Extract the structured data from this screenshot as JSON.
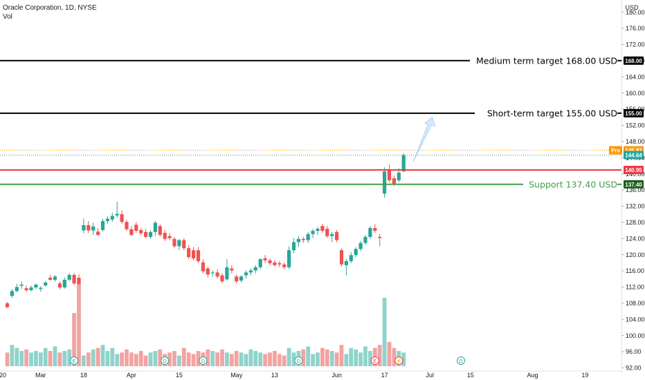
{
  "header": {
    "title": "Oracle Corporation, 1D, NYSE",
    "volume_label": "Vol"
  },
  "chart_data": {
    "type": "candlestick",
    "currency": "USD",
    "ylim": [
      89,
      183
    ],
    "y_ticks": [
      180,
      176,
      172,
      168,
      164,
      160,
      156,
      152,
      148,
      144,
      140,
      136,
      132,
      128,
      124,
      120,
      116,
      112,
      108,
      104,
      100,
      96,
      92
    ],
    "x_ticks": [
      {
        "label": "20",
        "idx": -1
      },
      {
        "label": "Mar",
        "idx": 7
      },
      {
        "label": "18",
        "idx": 16
      },
      {
        "label": "Apr",
        "idx": 26
      },
      {
        "label": "15",
        "idx": 36
      },
      {
        "label": "May",
        "idx": 48
      },
      {
        "label": "13",
        "idx": 56
      },
      {
        "label": "Jun",
        "idx": 69
      },
      {
        "label": "17",
        "idx": 79
      },
      {
        "label": "Jul",
        "idx": 88.5
      },
      {
        "label": "15",
        "idx": 97
      },
      {
        "label": "Aug",
        "idx": 110
      },
      {
        "label": "19",
        "idx": 121
      }
    ],
    "candles": [
      {
        "o": 108,
        "h": 108.3,
        "l": 106.8,
        "c": 107
      },
      {
        "o": 109.8,
        "h": 111.5,
        "l": 109.3,
        "c": 111
      },
      {
        "o": 111,
        "h": 112.8,
        "l": 110.7,
        "c": 112
      },
      {
        "o": 112.3,
        "h": 113.4,
        "l": 111.5,
        "c": 112.6
      },
      {
        "o": 111.7,
        "h": 112.4,
        "l": 110.8,
        "c": 111.2
      },
      {
        "o": 111.2,
        "h": 112.4,
        "l": 110.9,
        "c": 111.9
      },
      {
        "o": 111.9,
        "h": 112.9,
        "l": 111.5,
        "c": 112.6
      },
      {
        "o": 111.5,
        "h": 112.2,
        "l": 110.8,
        "c": 111.8
      },
      {
        "o": 112.4,
        "h": 113.5,
        "l": 112.1,
        "c": 113.1
      },
      {
        "o": 114.3,
        "h": 115,
        "l": 113.6,
        "c": 113.8
      },
      {
        "o": 113.8,
        "h": 114.9,
        "l": 113.3,
        "c": 114.6
      },
      {
        "o": 112.9,
        "h": 113.4,
        "l": 111.4,
        "c": 111.9
      },
      {
        "o": 111.9,
        "h": 114.4,
        "l": 111.6,
        "c": 113.8
      },
      {
        "o": 113.8,
        "h": 115.4,
        "l": 113.4,
        "c": 115
      },
      {
        "o": 115,
        "h": 115.5,
        "l": 112.5,
        "c": 112.9
      },
      {
        "o": 114.3,
        "h": 115.1,
        "l": 112.4,
        "c": 112.8
      },
      {
        "o": 126,
        "h": 129,
        "l": 125.3,
        "c": 127.3
      },
      {
        "o": 127.3,
        "h": 128.3,
        "l": 125.4,
        "c": 126
      },
      {
        "o": 126,
        "h": 127.9,
        "l": 124.9,
        "c": 127
      },
      {
        "o": 125.7,
        "h": 126.6,
        "l": 124.6,
        "c": 124.9
      },
      {
        "o": 126.1,
        "h": 128.9,
        "l": 125.7,
        "c": 128.3
      },
      {
        "o": 128.3,
        "h": 129.5,
        "l": 127.7,
        "c": 128.9
      },
      {
        "o": 128.7,
        "h": 130.4,
        "l": 128.1,
        "c": 129.6
      },
      {
        "o": 129.7,
        "h": 133.1,
        "l": 129.1,
        "c": 130.1
      },
      {
        "o": 130,
        "h": 130.9,
        "l": 127.6,
        "c": 128.1
      },
      {
        "o": 128.1,
        "h": 128.6,
        "l": 125.9,
        "c": 126.3
      },
      {
        "o": 126.3,
        "h": 127.1,
        "l": 124.6,
        "c": 124.9
      },
      {
        "o": 127.4,
        "h": 128.1,
        "l": 125.4,
        "c": 125.9
      },
      {
        "o": 126.1,
        "h": 126.6,
        "l": 124.9,
        "c": 125.3
      },
      {
        "o": 125.6,
        "h": 126.4,
        "l": 124.1,
        "c": 124.4
      },
      {
        "o": 124.4,
        "h": 126.1,
        "l": 123.9,
        "c": 125.6
      },
      {
        "o": 125.6,
        "h": 128.4,
        "l": 124.6,
        "c": 127.9
      },
      {
        "o": 127.1,
        "h": 127.6,
        "l": 124.4,
        "c": 124.9
      },
      {
        "o": 125.4,
        "h": 126.1,
        "l": 123.4,
        "c": 123.9
      },
      {
        "o": 124.6,
        "h": 125.4,
        "l": 123.6,
        "c": 124.1
      },
      {
        "o": 123.9,
        "h": 124.4,
        "l": 121.6,
        "c": 122.1
      },
      {
        "o": 122.1,
        "h": 123.9,
        "l": 121.1,
        "c": 123.6
      },
      {
        "o": 123.6,
        "h": 124.1,
        "l": 121.1,
        "c": 121.6
      },
      {
        "o": 121.6,
        "h": 122.4,
        "l": 118.9,
        "c": 119.4
      },
      {
        "o": 121.1,
        "h": 121.9,
        "l": 118.6,
        "c": 119.1
      },
      {
        "o": 121.1,
        "h": 121.9,
        "l": 117.9,
        "c": 118.4
      },
      {
        "o": 118.1,
        "h": 118.9,
        "l": 115.4,
        "c": 115.9
      },
      {
        "o": 116.6,
        "h": 117.1,
        "l": 114.4,
        "c": 115.1
      },
      {
        "o": 115.4,
        "h": 116.1,
        "l": 114.6,
        "c": 115.6
      },
      {
        "o": 115.6,
        "h": 116.4,
        "l": 114.1,
        "c": 114.6
      },
      {
        "o": 114.9,
        "h": 115.4,
        "l": 112.9,
        "c": 113.4
      },
      {
        "o": 113.9,
        "h": 118.9,
        "l": 113.6,
        "c": 116.9
      },
      {
        "o": 116.6,
        "h": 117.4,
        "l": 115.4,
        "c": 116.1
      },
      {
        "o": 114.6,
        "h": 115.1,
        "l": 112.9,
        "c": 113.4
      },
      {
        "o": 113.6,
        "h": 114.9,
        "l": 113.1,
        "c": 114.6
      },
      {
        "o": 114.9,
        "h": 116.1,
        "l": 114.1,
        "c": 115.6
      },
      {
        "o": 115.6,
        "h": 116.6,
        "l": 114.9,
        "c": 116.1
      },
      {
        "o": 116.1,
        "h": 117.4,
        "l": 115.4,
        "c": 116.9
      },
      {
        "o": 116.9,
        "h": 119.1,
        "l": 116.4,
        "c": 118.9
      },
      {
        "o": 119.1,
        "h": 119.9,
        "l": 117.9,
        "c": 118.6
      },
      {
        "o": 118.6,
        "h": 119.1,
        "l": 117.4,
        "c": 117.9
      },
      {
        "o": 118.1,
        "h": 118.6,
        "l": 117.1,
        "c": 117.4
      },
      {
        "o": 117.9,
        "h": 118.4,
        "l": 116.9,
        "c": 117.6
      },
      {
        "o": 117.6,
        "h": 118.1,
        "l": 116.4,
        "c": 116.9
      },
      {
        "o": 116.9,
        "h": 122.1,
        "l": 116.4,
        "c": 121.1
      },
      {
        "o": 121.1,
        "h": 124.1,
        "l": 120.4,
        "c": 123.1
      },
      {
        "o": 123.1,
        "h": 124.6,
        "l": 121.9,
        "c": 123.9
      },
      {
        "o": 123.9,
        "h": 124.4,
        "l": 122.9,
        "c": 123.6
      },
      {
        "o": 123.6,
        "h": 125.6,
        "l": 122.9,
        "c": 125.1
      },
      {
        "o": 125.1,
        "h": 126.4,
        "l": 124.1,
        "c": 125.9
      },
      {
        "o": 125.9,
        "h": 126.9,
        "l": 124.9,
        "c": 126.4
      },
      {
        "o": 127.1,
        "h": 127.6,
        "l": 125.4,
        "c": 125.9
      },
      {
        "o": 126.4,
        "h": 127.1,
        "l": 124.1,
        "c": 124.6
      },
      {
        "o": 124.6,
        "h": 125.6,
        "l": 123.1,
        "c": 125.1
      },
      {
        "o": 125.6,
        "h": 126.1,
        "l": 123.1,
        "c": 123.6
      },
      {
        "o": 121.1,
        "h": 121.6,
        "l": 117.1,
        "c": 117.6
      },
      {
        "o": 117.4,
        "h": 118.9,
        "l": 114.9,
        "c": 118.4
      },
      {
        "o": 118.4,
        "h": 120.6,
        "l": 117.9,
        "c": 119.9
      },
      {
        "o": 119.9,
        "h": 121.9,
        "l": 119.4,
        "c": 121.4
      },
      {
        "o": 121.4,
        "h": 123.4,
        "l": 120.9,
        "c": 122.9
      },
      {
        "o": 122.9,
        "h": 124.9,
        "l": 122.4,
        "c": 124.4
      },
      {
        "o": 124.4,
        "h": 127.1,
        "l": 123.9,
        "c": 126.6
      },
      {
        "o": 126.6,
        "h": 127.6,
        "l": 125.4,
        "c": 125.9
      },
      {
        "o": 124.4,
        "h": 125.1,
        "l": 122.1,
        "c": 124.1
      },
      {
        "o": 135.1,
        "h": 141.6,
        "l": 134.1,
        "c": 140.6
      },
      {
        "o": 140.9,
        "h": 142.3,
        "l": 137.9,
        "c": 138.4
      },
      {
        "o": 138.9,
        "h": 139.6,
        "l": 136.9,
        "c": 137.5
      },
      {
        "o": 138.4,
        "h": 141.4,
        "l": 137.9,
        "c": 140.3
      },
      {
        "o": 140.6,
        "h": 145.1,
        "l": 140.4,
        "c": 144.64
      }
    ],
    "volume": [
      9,
      14,
      12,
      10,
      11,
      9,
      10,
      9,
      12,
      10,
      13,
      9,
      10,
      11,
      12,
      13,
      7,
      9,
      11,
      12,
      14,
      10,
      12,
      8,
      9,
      11,
      9,
      8,
      10,
      7,
      9,
      10,
      11,
      8,
      9,
      10,
      7,
      12,
      9,
      8,
      10,
      9,
      11,
      10,
      9,
      11,
      9,
      8,
      10,
      9,
      8,
      11,
      10,
      9,
      8,
      9,
      10,
      8,
      7,
      12,
      9,
      10,
      11,
      13,
      8,
      9,
      12,
      11,
      10,
      9,
      14,
      8,
      12,
      11,
      9,
      13,
      10,
      12,
      14,
      13,
      16,
      12,
      10,
      9
    ],
    "big_volume": [
      {
        "idx": 14,
        "v": 35
      },
      {
        "idx": 15,
        "v": 55
      },
      {
        "idx": 79,
        "v": 45
      }
    ],
    "annotations": [
      {
        "label": "Medium term target 168.00 USD",
        "price": 168.0,
        "tag": "168.00",
        "color": "#000000"
      },
      {
        "label": "Short-term target 155.00 USD",
        "price": 155.0,
        "tag": "155.00",
        "color": "#000000"
      },
      {
        "label": "Support 137.40 USD",
        "price": 137.4,
        "tag": "137.40",
        "color": "#43a047"
      }
    ],
    "resistance": {
      "price": 140.95,
      "tag": "140.95",
      "color": "#f23645"
    },
    "last_price": {
      "price": 144.64,
      "tag": "144.64",
      "color": "#26a69a"
    },
    "premarket": {
      "label": "Pre",
      "price": 145.83,
      "tag": "145.83",
      "color": "#ff9800"
    },
    "events": [
      {
        "type": "E",
        "idx": 14,
        "color": "#26a69a"
      },
      {
        "type": "D",
        "idx": 33,
        "color": "#26a69a"
      },
      {
        "type": "D",
        "idx": 41,
        "color": "#26a69a"
      },
      {
        "type": "D",
        "idx": 61,
        "color": "#26a69a"
      },
      {
        "type": "E",
        "idx": 77,
        "color": "#f23645"
      },
      {
        "type": "⚡",
        "idx": 82,
        "color": "#f23645"
      },
      {
        "type": "D",
        "idx": 95,
        "color": "#26a69a"
      }
    ],
    "projection_arrow": {
      "from": {
        "idx": 85,
        "price": 143
      },
      "to": {
        "idx": 89,
        "price": 154
      }
    },
    "colors": {
      "up": "#26a69a",
      "down": "#ef5350",
      "vol_up": "#8fd3cc",
      "vol_down": "#f3a3a1"
    }
  },
  "axis": {
    "currency_label": "USD"
  }
}
